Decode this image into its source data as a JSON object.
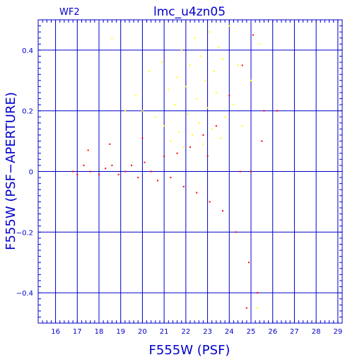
{
  "chart_data": {
    "type": "scatter",
    "title": "lmc_u4zn05",
    "chip_label": "WF2",
    "xlabel": "F555W (PSF)",
    "ylabel": "F555W (PSF−APERTURE)",
    "xlim": [
      15.2,
      29.2
    ],
    "ylim": [
      -0.5,
      0.5
    ],
    "x_ticks": [
      16,
      17,
      18,
      19,
      20,
      21,
      22,
      23,
      24,
      25,
      26,
      27,
      28,
      29
    ],
    "y_ticks": [
      -0.4,
      -0.2,
      0,
      0.2,
      0.4
    ],
    "y_tick_labels": [
      "−0.4",
      "−0.2",
      "0",
      "0.2",
      "0.4"
    ],
    "grid": true,
    "axis_color": "#0000cc",
    "series": [
      {
        "color": "#ffff00",
        "description_points": "sparse population above the main locus, x 19.5-25.5, y 0.05-0.5",
        "points": [
          [
            18.6,
            0.44
          ],
          [
            19.2,
            0.2
          ],
          [
            19.7,
            0.25
          ],
          [
            20.0,
            0.2
          ],
          [
            20.3,
            0.33
          ],
          [
            20.6,
            0.18
          ],
          [
            20.9,
            0.36
          ],
          [
            21.0,
            0.15
          ],
          [
            21.2,
            0.27
          ],
          [
            21.3,
            0.1
          ],
          [
            21.5,
            0.22
          ],
          [
            21.6,
            0.31
          ],
          [
            21.7,
            0.13
          ],
          [
            21.8,
            0.4
          ],
          [
            21.9,
            0.08
          ],
          [
            22.0,
            0.28
          ],
          [
            22.1,
            0.19
          ],
          [
            22.2,
            0.35
          ],
          [
            22.3,
            0.12
          ],
          [
            22.4,
            0.44
          ],
          [
            22.5,
            0.24
          ],
          [
            22.6,
            0.16
          ],
          [
            22.7,
            0.38
          ],
          [
            22.8,
            0.09
          ],
          [
            22.9,
            0.3
          ],
          [
            23.0,
            0.21
          ],
          [
            23.1,
            0.46
          ],
          [
            23.2,
            0.14
          ],
          [
            23.3,
            0.33
          ],
          [
            23.4,
            0.26
          ],
          [
            23.5,
            0.41
          ],
          [
            23.6,
            0.11
          ],
          [
            23.7,
            0.37
          ],
          [
            23.8,
            0.18
          ],
          [
            24.0,
            0.48
          ],
          [
            24.2,
            0.22
          ],
          [
            24.4,
            0.35
          ],
          [
            24.6,
            0.15
          ],
          [
            25.0,
            0.3
          ],
          [
            25.3,
            -0.45
          ],
          [
            25.4,
            0.42
          ]
        ]
      },
      {
        "color": "#ff0000",
        "description_points": "dense main locus around y=0 from x 16.5 to 25.5, fanning out toward faint magnitudes",
        "points": [
          [
            16.8,
            0.0
          ],
          [
            17.0,
            -0.01
          ],
          [
            17.3,
            0.02
          ],
          [
            17.6,
            0.0
          ],
          [
            18.0,
            -0.01
          ],
          [
            18.3,
            0.01
          ],
          [
            18.6,
            0.02
          ],
          [
            18.9,
            -0.01
          ],
          [
            19.2,
            0.0
          ],
          [
            19.5,
            0.02
          ],
          [
            19.8,
            -0.02
          ],
          [
            20.1,
            0.03
          ],
          [
            20.4,
            0.0
          ],
          [
            20.7,
            -0.03
          ],
          [
            21.0,
            0.05
          ],
          [
            21.3,
            -0.02
          ],
          [
            21.6,
            0.06
          ],
          [
            21.9,
            -0.05
          ],
          [
            22.2,
            0.08
          ],
          [
            22.5,
            -0.07
          ],
          [
            22.8,
            0.12
          ],
          [
            23.1,
            -0.1
          ],
          [
            23.4,
            0.15
          ],
          [
            23.7,
            -0.13
          ],
          [
            24.0,
            0.25
          ],
          [
            24.3,
            -0.2
          ],
          [
            24.6,
            0.35
          ],
          [
            24.9,
            -0.3
          ],
          [
            25.1,
            0.45
          ],
          [
            25.3,
            -0.4
          ],
          [
            25.5,
            0.1
          ],
          [
            17.5,
            0.07
          ],
          [
            18.5,
            0.09
          ],
          [
            20.0,
            0.11
          ],
          [
            23.0,
            0.05
          ],
          [
            24.5,
            0.0
          ],
          [
            25.0,
            0.0
          ],
          [
            24.8,
            -0.45
          ],
          [
            25.6,
            0.2
          ],
          [
            26.2,
            0.2
          ]
        ]
      }
    ]
  }
}
